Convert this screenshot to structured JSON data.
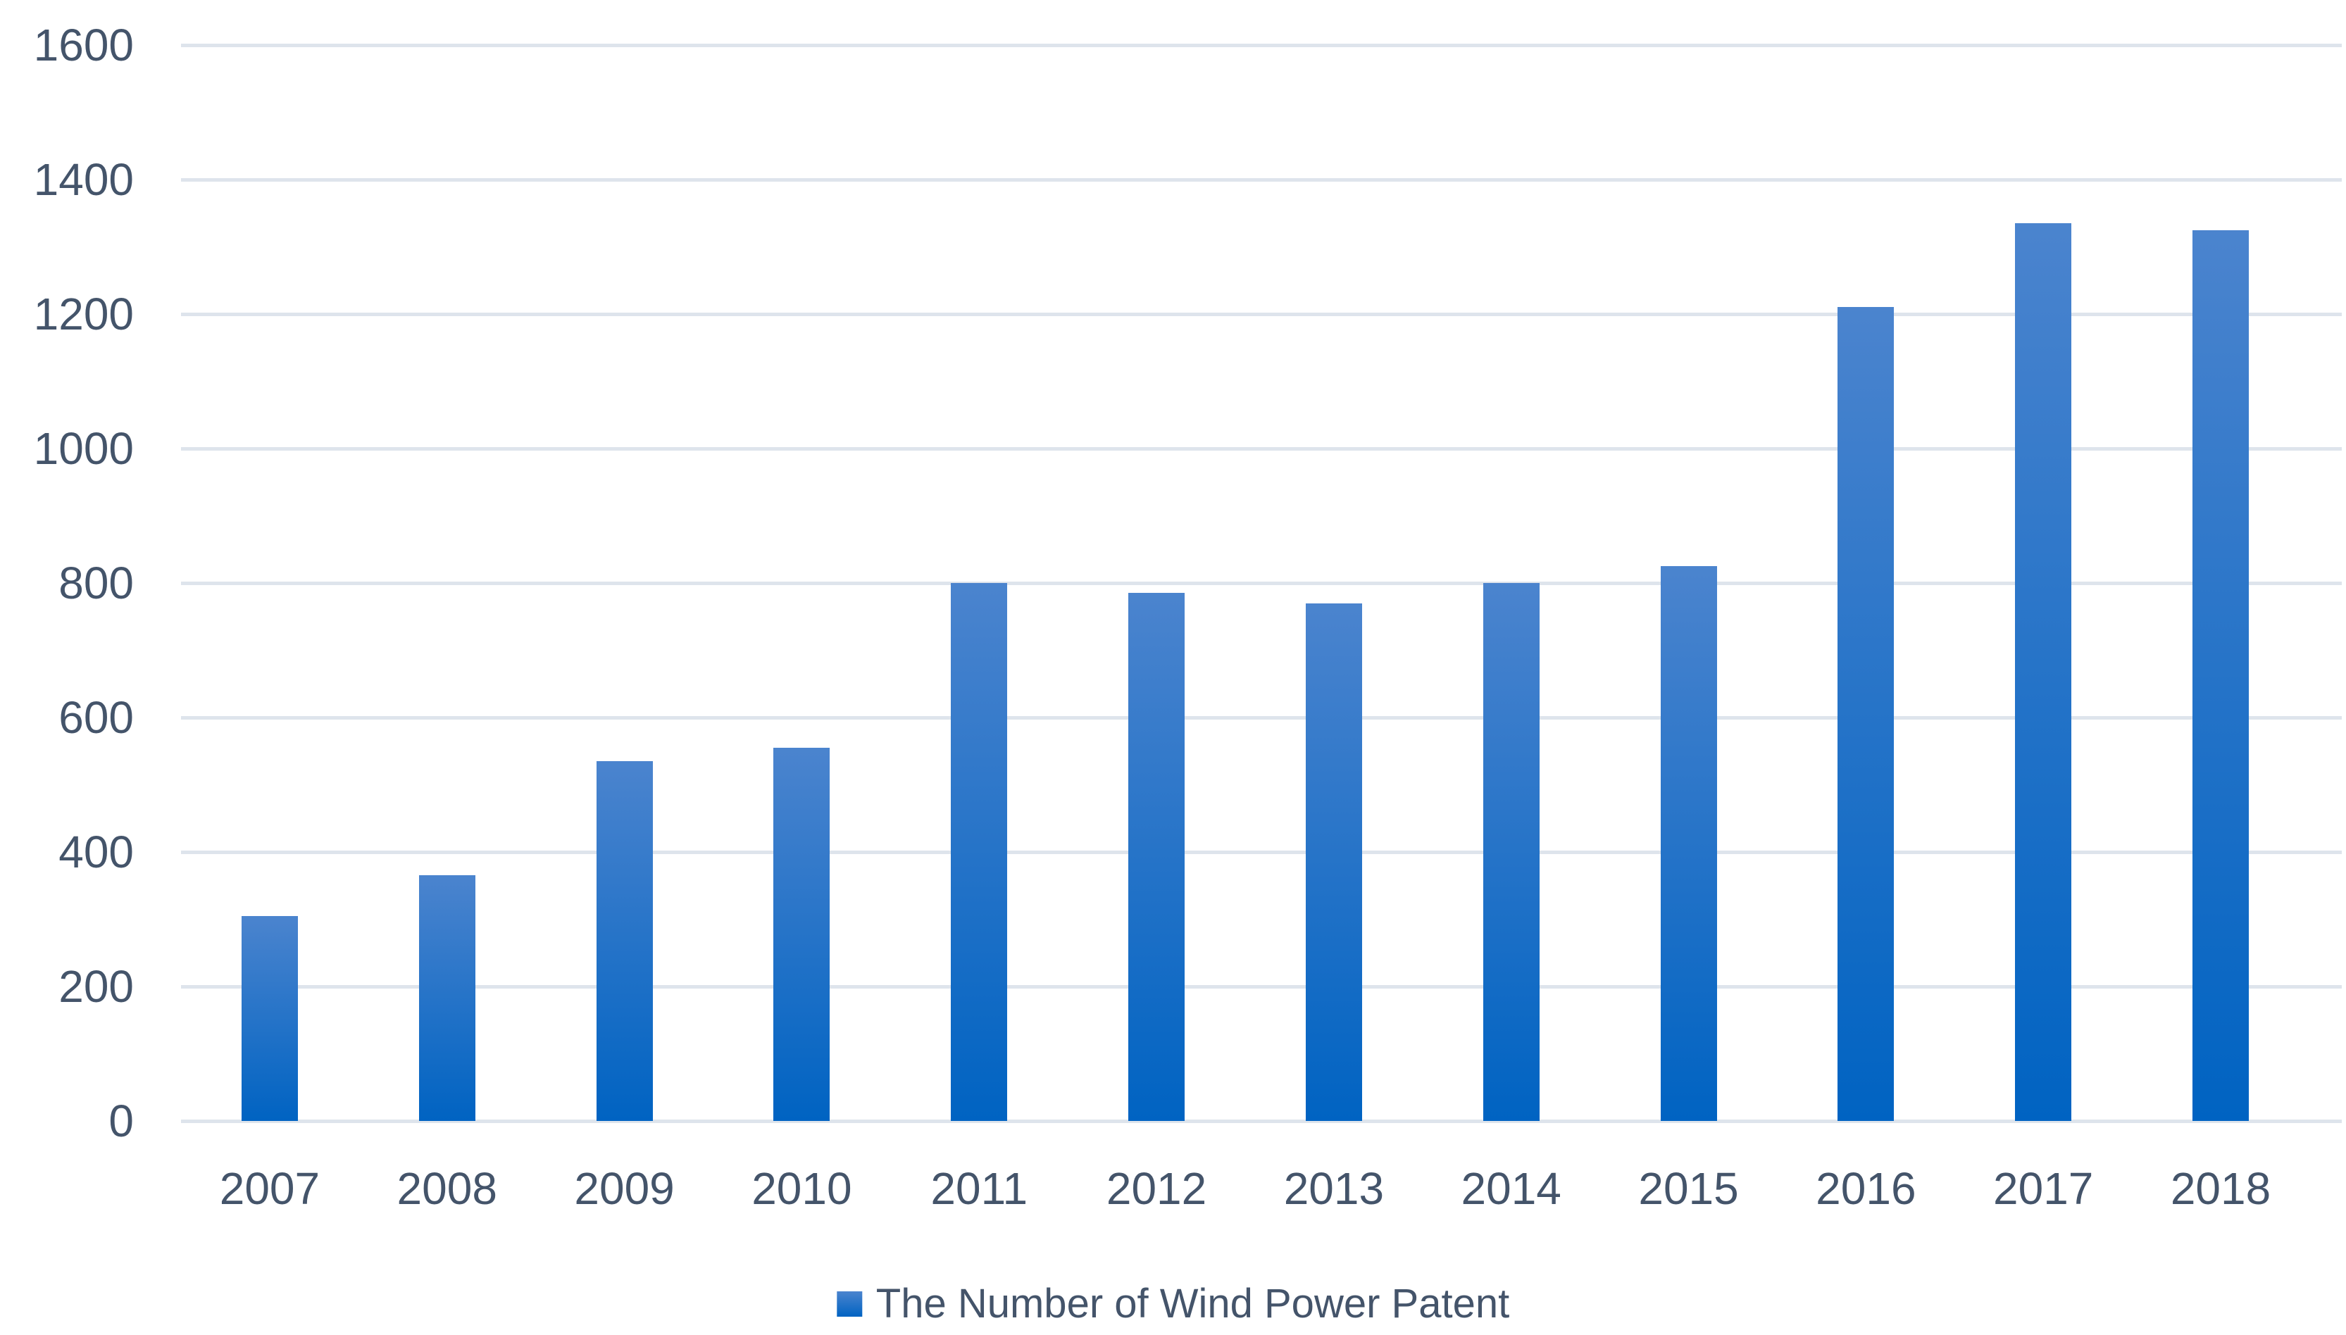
{
  "chart_data": {
    "type": "bar",
    "title": "",
    "categories": [
      "2007",
      "2008",
      "2009",
      "2010",
      "2011",
      "2012",
      "2013",
      "2014",
      "2015",
      "2016",
      "2017",
      "2018"
    ],
    "series": [
      {
        "name": "The Number of Wind Power Patent",
        "values": [
          305,
          365,
          535,
          555,
          800,
          785,
          770,
          800,
          825,
          1210,
          1335,
          1325
        ]
      }
    ],
    "xlabel": "",
    "ylabel": "",
    "ylim": [
      0,
      1600
    ],
    "ytick_interval": 200,
    "yticks": [
      0,
      200,
      400,
      600,
      800,
      1000,
      1200,
      1400,
      1600
    ],
    "grid": "horizontal",
    "legend_position": "bottom"
  },
  "legend": {
    "swatch_icon": "legend-color-swatch",
    "label": "The Number of Wind Power Patent"
  },
  "colors": {
    "background": "#ffffff",
    "gridline": "#dee4ec",
    "axis_text": "#44546a",
    "bar_gradient_top": "#4b84ce",
    "bar_gradient_bottom": "#0063c2"
  }
}
